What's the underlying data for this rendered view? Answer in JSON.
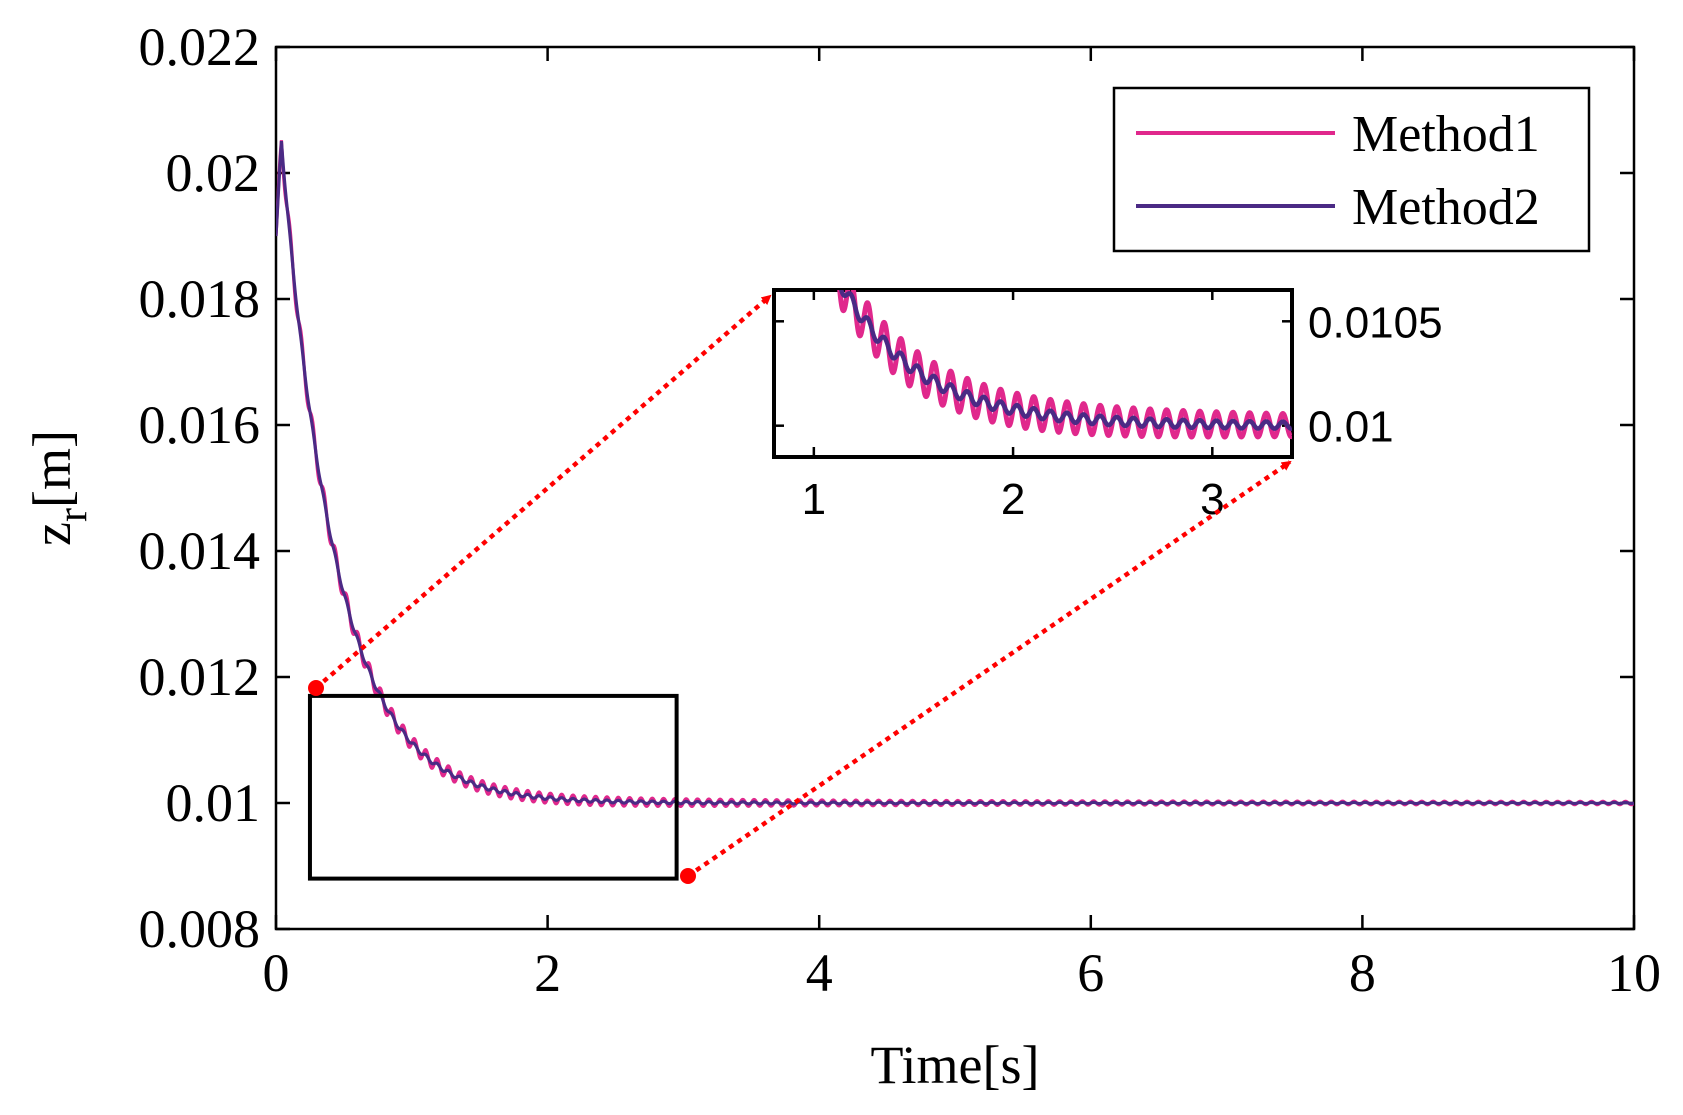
{
  "colors": {
    "method1": "#e0288c",
    "method2": "#4b2a85",
    "axes": "#000000",
    "arrow": "#ff0000"
  },
  "chart_data": {
    "type": "line",
    "title": "",
    "xlabel": "Time[s]",
    "ylabel_main": "z",
    "ylabel_sub": "r",
    "ylabel_unit": "[m]",
    "xlim": [
      0,
      10
    ],
    "ylim": [
      0.008,
      0.022
    ],
    "xticks": [
      0,
      2,
      4,
      6,
      8,
      10
    ],
    "xtick_labels": [
      "0",
      "2",
      "4",
      "6",
      "8",
      "10"
    ],
    "yticks": [
      0.008,
      0.01,
      0.012,
      0.014,
      0.016,
      0.018,
      0.02,
      0.022
    ],
    "ytick_labels": [
      "0.008",
      "0.01",
      "0.012",
      "0.014",
      "0.016",
      "0.018",
      "0.02",
      "0.022"
    ],
    "legend_position": "top-right",
    "series": [
      {
        "name": "Method1",
        "description": "damped oscillating decay",
        "initial_value": 0.019,
        "peak_value": 0.0205,
        "final_value": 0.01,
        "decay_time_constant": 0.4,
        "oscillation_frequency_hz": 12
      },
      {
        "name": "Method2",
        "description": "damped decay with small ripple",
        "initial_value": 0.019,
        "peak_value": 0.0205,
        "final_value": 0.01,
        "decay_time_constant": 0.4,
        "oscillation_frequency_hz": 12
      }
    ],
    "zoom_region": {
      "x": [
        0.25,
        2.95
      ],
      "y": [
        0.0088,
        0.0117
      ]
    },
    "inset": {
      "xlim": [
        0.8,
        3.4
      ],
      "ylim": [
        0.00985,
        0.01065
      ],
      "xticks": [
        1,
        2,
        3
      ],
      "xtick_labels": [
        "1",
        "2",
        "3"
      ],
      "yticks": [
        0.01,
        0.0105
      ],
      "ytick_labels": [
        "0.01",
        "0.0105"
      ]
    }
  }
}
